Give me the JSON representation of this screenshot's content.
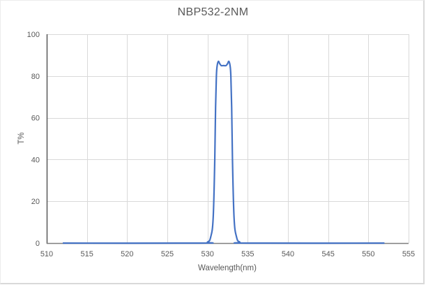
{
  "chart_data": {
    "type": "line",
    "title": "NBP532-2NM",
    "xlabel": "Wavelength(nm)",
    "ylabel": "T%",
    "xlim": [
      510,
      555
    ],
    "ylim": [
      0,
      100
    ],
    "x_ticks": [
      510,
      515,
      520,
      525,
      530,
      535,
      540,
      545,
      550,
      555
    ],
    "y_ticks": [
      0,
      20,
      40,
      60,
      80,
      100
    ],
    "grid": {
      "vertical": true,
      "horizontal": true
    },
    "legend": "none",
    "series": [
      {
        "name": "T%",
        "color": "#4472c4",
        "x": [
          512,
          529.0,
          530.0,
          530.4,
          530.7,
          530.9,
          531.0,
          531.1,
          531.2,
          531.35,
          531.5,
          531.7,
          532.0,
          532.3,
          532.5,
          532.65,
          532.8,
          532.9,
          533.0,
          533.1,
          533.3,
          533.6,
          534.0,
          535.0,
          552
        ],
        "values": [
          0,
          0,
          0.5,
          3,
          12,
          40,
          65,
          80,
          85,
          87,
          86,
          85,
          85,
          85,
          86,
          87,
          85,
          80,
          65,
          40,
          12,
          3,
          0.5,
          0,
          0
        ]
      }
    ]
  },
  "colors": {
    "series": "#4472c4",
    "grid": "#d9d9d9",
    "axis": "#595959",
    "text": "#595959"
  }
}
